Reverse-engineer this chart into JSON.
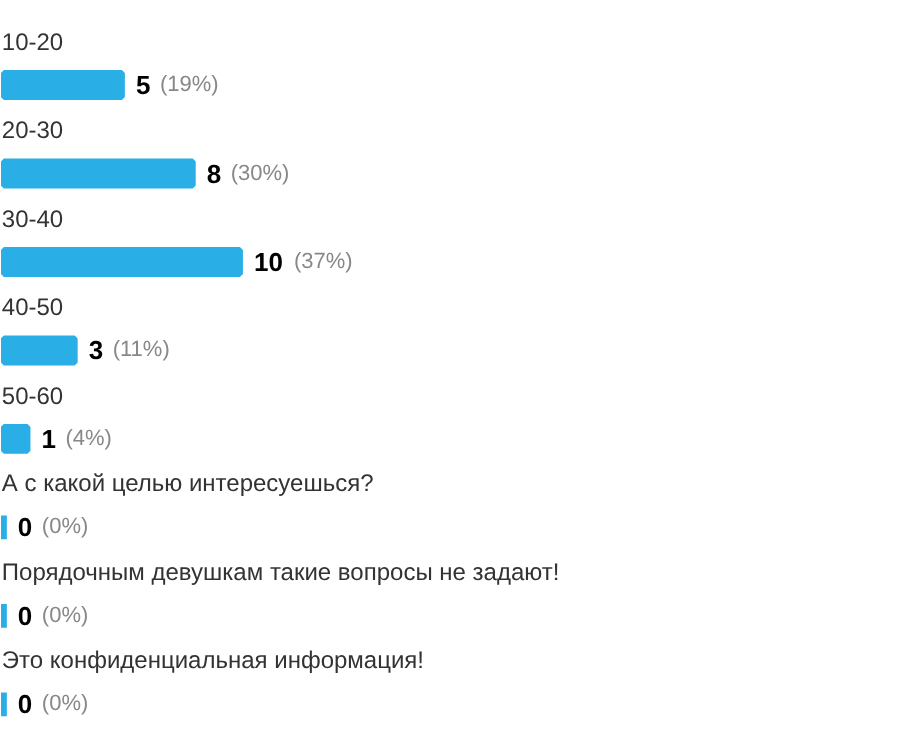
{
  "chart_data": {
    "type": "bar",
    "orientation": "horizontal",
    "categories": [
      "10-20",
      "20-30",
      "30-40",
      "40-50",
      "50-60",
      "А с какой целью интересуешься?",
      "Порядочным девушкам такие вопросы не задают!",
      "Это конфиденциальная информация!"
    ],
    "values": [
      5,
      8,
      10,
      3,
      1,
      0,
      0,
      0
    ],
    "color": "#29aee6",
    "data_labels": true,
    "annotations": [
      {
        "text": "(19%)",
        "x": 5,
        "y": "10-20"
      },
      {
        "text": "(30%)",
        "x": 8,
        "y": "20-30"
      },
      {
        "text": "(37%)",
        "x": 10,
        "y": "30-40"
      },
      {
        "text": "(11%)",
        "x": 3,
        "y": "40-50"
      },
      {
        "text": "(4%)",
        "x": 1,
        "y": "50-60"
      },
      {
        "text": "(0%)",
        "x": 0,
        "y": "А с какой целью интересуешься?"
      },
      {
        "text": "(0%)",
        "x": 0,
        "y": "Порядочным девушкам такие вопросы не задают!"
      },
      {
        "text": "(0%)",
        "x": 0,
        "y": "Это конфиденциальная информация!"
      }
    ]
  }
}
